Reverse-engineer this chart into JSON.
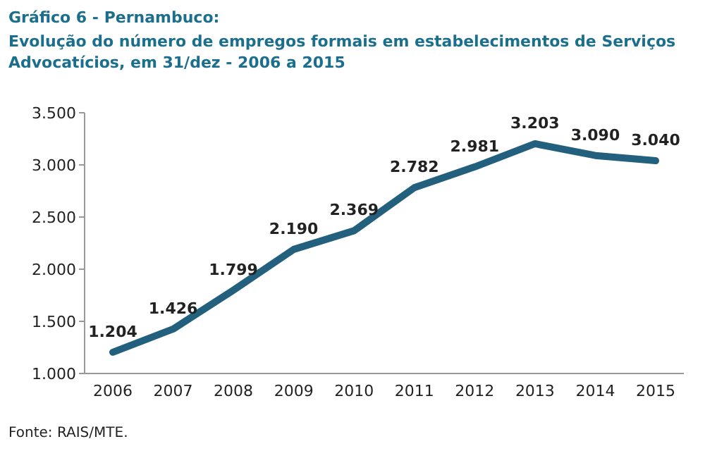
{
  "chart_data": {
    "type": "line",
    "title": "Gráfico 6 - Pernambuco:",
    "subtitle": "Evolução do número de empregos formais em estabelecimentos de Serviços Advocatícios, em 31/dez - 2006 a 2015",
    "categories": [
      "2006",
      "2007",
      "2008",
      "2009",
      "2010",
      "2011",
      "2012",
      "2013",
      "2014",
      "2015"
    ],
    "series": [
      {
        "color": "#22607e",
        "values": [
          1204,
          1426,
          1799,
          2190,
          2369,
          2782,
          2981,
          3203,
          3090,
          3040
        ]
      }
    ],
    "ylim": [
      1000,
      3500
    ],
    "yticks": [
      {
        "value": 1000,
        "label": "1.000"
      },
      {
        "value": 1500,
        "label": "1.500"
      },
      {
        "value": 2000,
        "label": "2.000"
      },
      {
        "value": 2500,
        "label": "2.500"
      },
      {
        "value": 3000,
        "label": "3.000"
      },
      {
        "value": 3500,
        "label": "3.500"
      }
    ],
    "value_labels": [
      "1.204",
      "1.426",
      "1.799",
      "2.190",
      "2.369",
      "2.782",
      "2.981",
      "3.203",
      "3.090",
      "3.040"
    ],
    "annotations": [
      "Fonte: RAIS/MTE."
    ],
    "grid": false,
    "marker": "none",
    "line_style": "solid"
  }
}
